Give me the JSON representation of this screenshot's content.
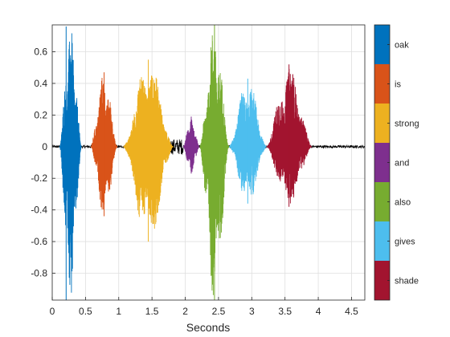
{
  "chart_data": {
    "type": "line",
    "title": "",
    "xlabel": "Seconds",
    "ylabel": "",
    "xlim": [
      0,
      4.7
    ],
    "ylim": [
      -0.97,
      0.77
    ],
    "xticks": [
      0,
      0.5,
      1,
      1.5,
      2,
      2.5,
      3,
      3.5,
      4,
      4.5
    ],
    "xtick_labels": [
      "0",
      "0.5",
      "1",
      "1.5",
      "2",
      "2.5",
      "3",
      "3.5",
      "4",
      "4.5"
    ],
    "yticks": [
      -0.8,
      -0.6,
      -0.4,
      -0.2,
      0,
      0.2,
      0.4,
      0.6
    ],
    "ytick_labels": [
      "-0.8",
      "-0.6",
      "-0.4",
      "-0.2",
      "0",
      "0.2",
      "0.4",
      "0.6"
    ],
    "grid": true,
    "legend": "colorbar-right",
    "background_color": "#000000",
    "series": [
      {
        "name": "oak",
        "color": "#0072BD",
        "start": 0.11,
        "end": 0.44,
        "peak_pos": 0.76,
        "peak_neg": -0.97
      },
      {
        "name": "is",
        "color": "#D95319",
        "start": 0.58,
        "end": 0.98,
        "peak_pos": 0.47,
        "peak_neg": -0.44
      },
      {
        "name": "strong",
        "color": "#EDB120",
        "start": 1.07,
        "end": 1.82,
        "peak_pos": 0.55,
        "peak_neg": -0.6
      },
      {
        "name": "and",
        "color": "#7E2F8E",
        "start": 1.97,
        "end": 2.21,
        "peak_pos": 0.19,
        "peak_neg": -0.17
      },
      {
        "name": "also",
        "color": "#77AC30",
        "start": 2.22,
        "end": 2.66,
        "peak_pos": 0.77,
        "peak_neg": -0.97
      },
      {
        "name": "gives",
        "color": "#4DBEEE",
        "start": 2.66,
        "end": 3.22,
        "peak_pos": 0.43,
        "peak_neg": -0.36
      },
      {
        "name": "shade",
        "color": "#A2142F",
        "start": 3.22,
        "end": 3.9,
        "peak_pos": 0.52,
        "peak_neg": -0.38
      }
    ]
  }
}
